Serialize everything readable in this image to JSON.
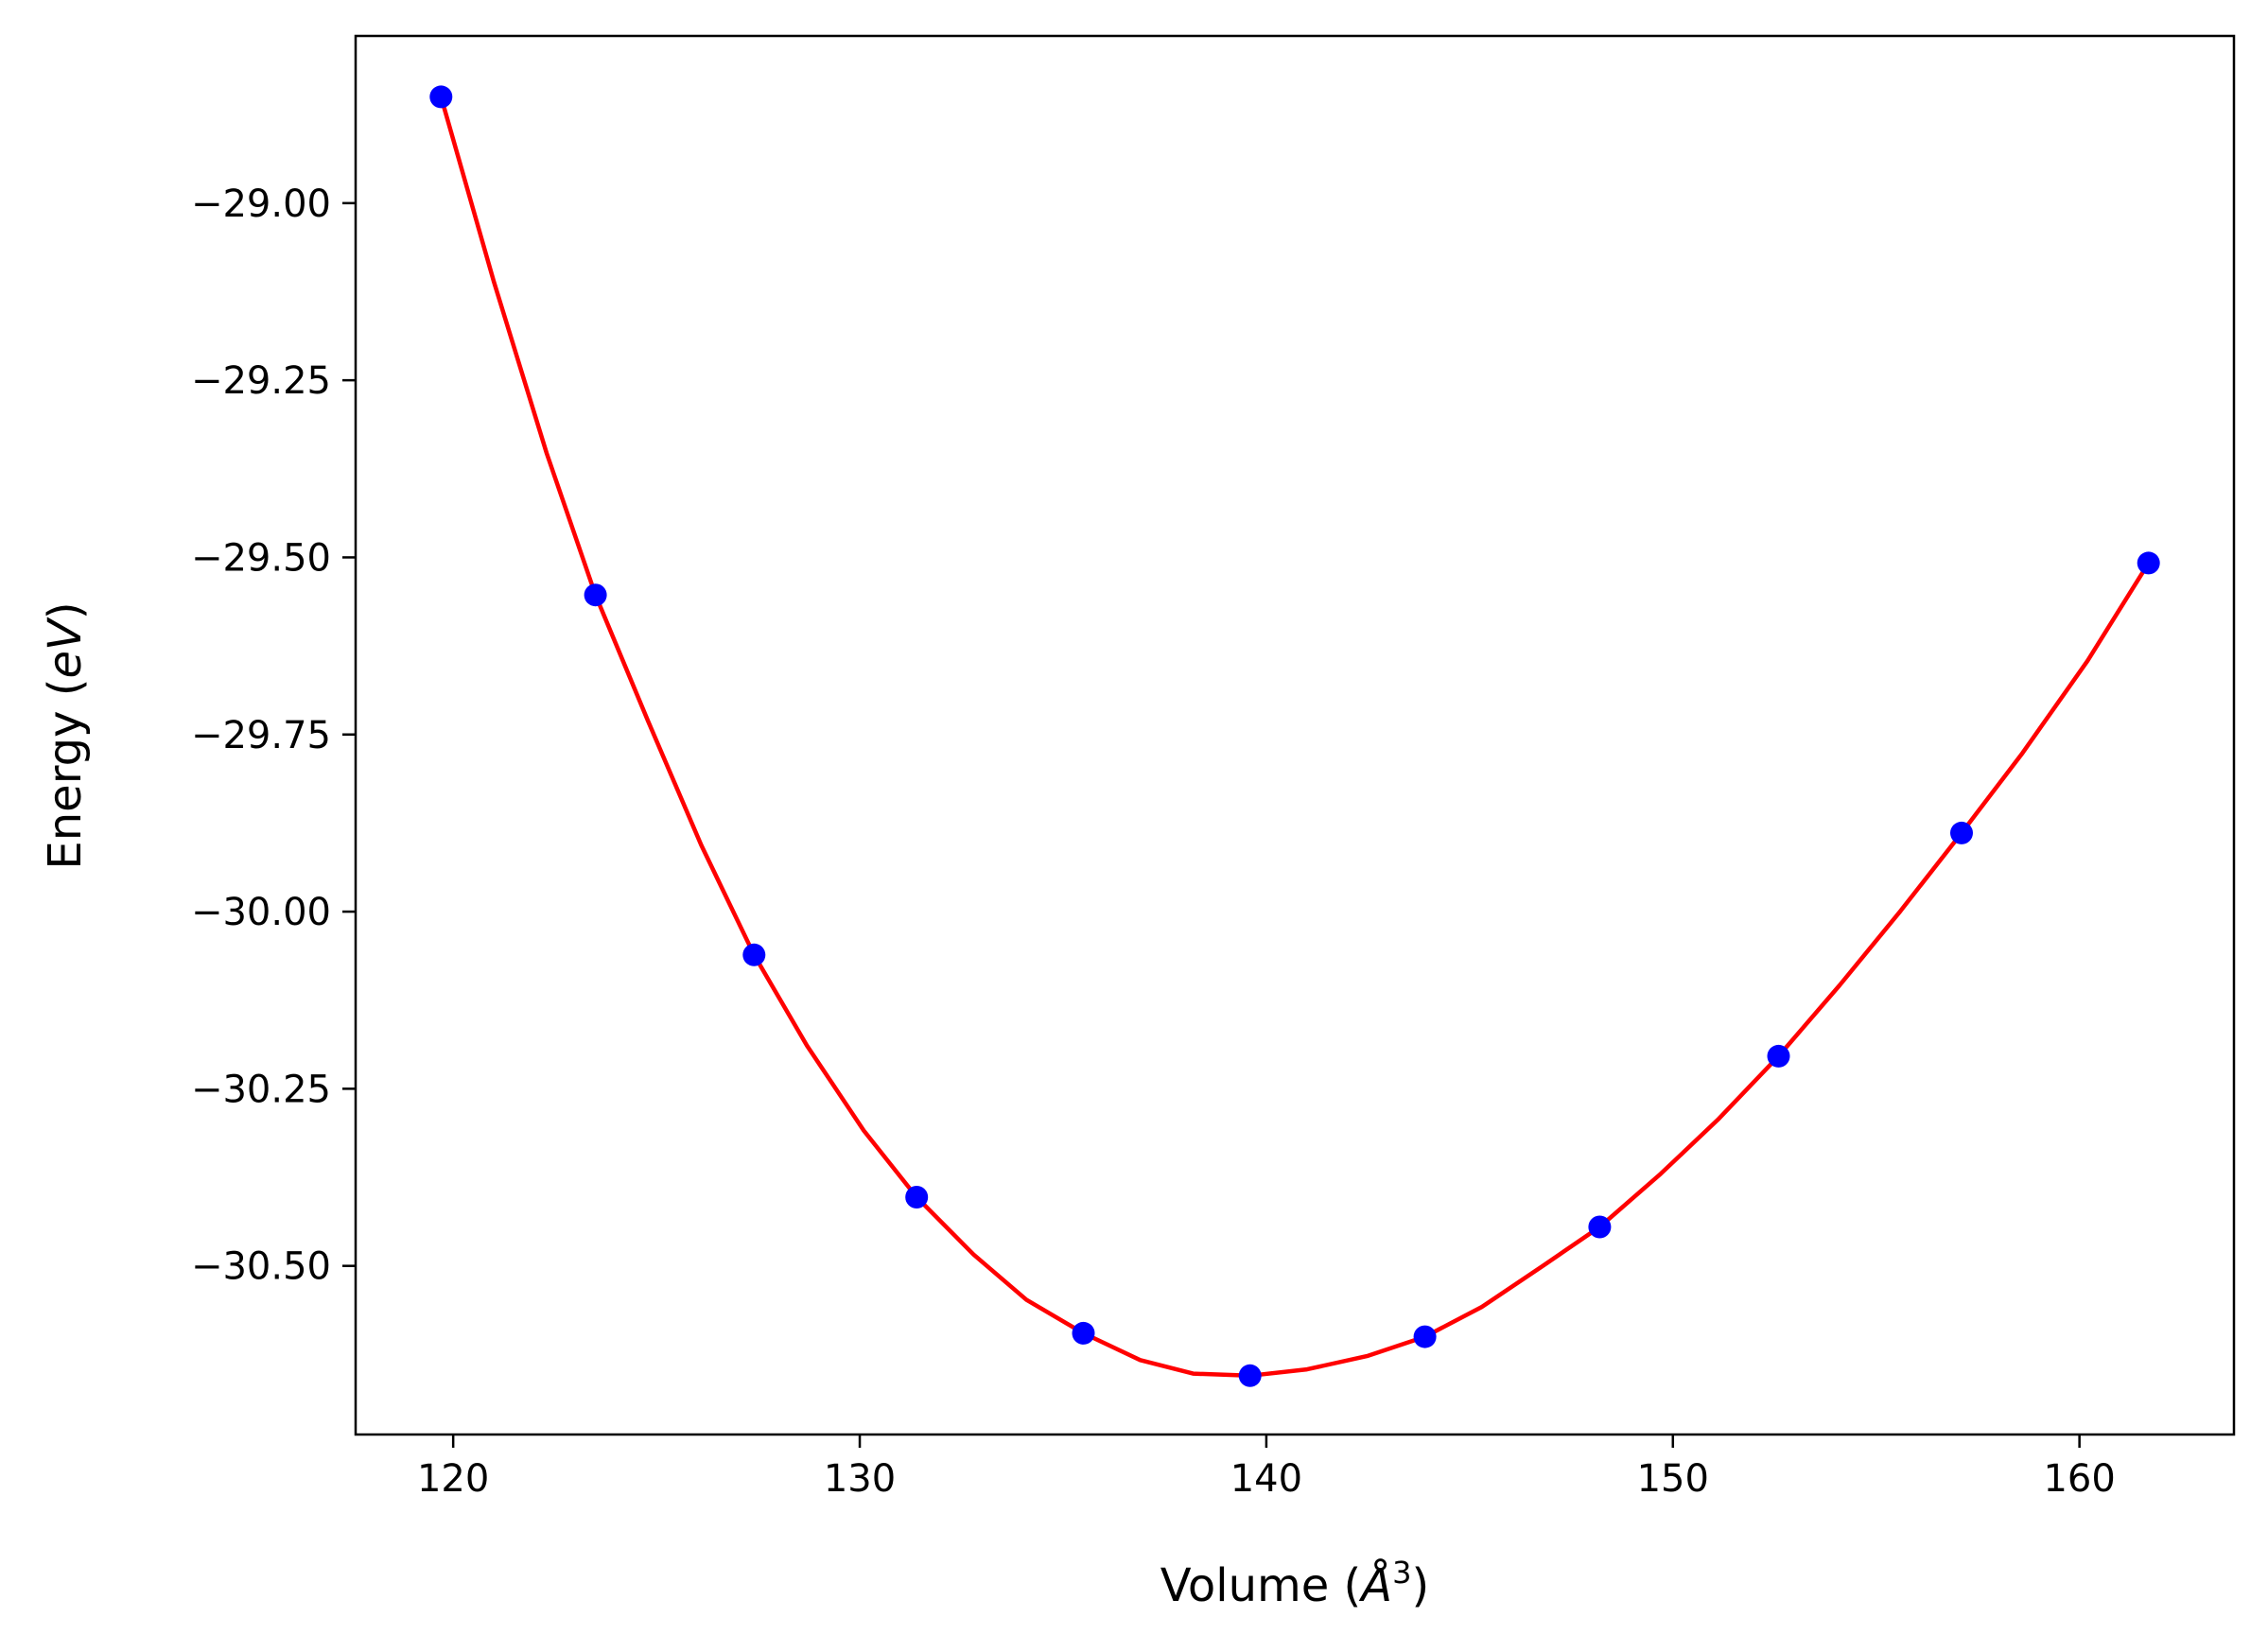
{
  "chart_data": {
    "type": "scatter",
    "xlabel_prefix": "Volume (",
    "xlabel_unit": "Å",
    "xlabel_exp": "3",
    "xlabel_suffix": ")",
    "ylabel_prefix": "Energy (",
    "ylabel_unit": "eV",
    "ylabel_suffix": ")",
    "xlim": [
      117.6,
      163.8
    ],
    "ylim": [
      -30.738,
      -28.764
    ],
    "x_ticks": [
      {
        "value": 120,
        "label": "120"
      },
      {
        "value": 130,
        "label": "130"
      },
      {
        "value": 140,
        "label": "140"
      },
      {
        "value": 150,
        "label": "150"
      },
      {
        "value": 160,
        "label": "160"
      }
    ],
    "y_ticks": [
      {
        "value": -29.0,
        "label": "−29.00"
      },
      {
        "value": -29.25,
        "label": "−29.25"
      },
      {
        "value": -29.5,
        "label": "−29.50"
      },
      {
        "value": -29.75,
        "label": "−29.75"
      },
      {
        "value": -30.0,
        "label": "−30.00"
      },
      {
        "value": -30.25,
        "label": "−30.25"
      },
      {
        "value": -30.5,
        "label": "−30.50"
      }
    ],
    "series": [
      {
        "kind": "points",
        "color": "#0000ff",
        "x": [
          119.7,
          123.5,
          127.4,
          131.4,
          135.5,
          139.6,
          143.9,
          148.2,
          152.6,
          157.1,
          161.7
        ],
        "y": [
          -28.85,
          -29.553,
          -30.061,
          -30.403,
          -30.595,
          -30.655,
          -30.6,
          -30.445,
          -30.204,
          -29.889,
          -29.508
        ]
      },
      {
        "kind": "fit-curve",
        "color": "#ff0000",
        "x": [
          119.7,
          121.0,
          122.3,
          123.5,
          124.8,
          126.1,
          127.4,
          128.7,
          130.1,
          131.4,
          132.8,
          134.1,
          135.5,
          136.9,
          138.2,
          139.6,
          141.0,
          142.5,
          143.9,
          145.3,
          146.8,
          148.2,
          149.7,
          151.1,
          152.6,
          154.1,
          155.6,
          157.1,
          158.6,
          160.2,
          161.7
        ],
        "y": [
          -28.85,
          -29.111,
          -29.353,
          -29.553,
          -29.732,
          -29.906,
          -30.061,
          -30.189,
          -30.309,
          -30.403,
          -30.484,
          -30.548,
          -30.595,
          -30.633,
          -30.652,
          -30.655,
          -30.646,
          -30.627,
          -30.6,
          -30.558,
          -30.5,
          -30.445,
          -30.37,
          -30.294,
          -30.204,
          -30.104,
          -29.999,
          -29.889,
          -29.776,
          -29.646,
          -29.508
        ]
      }
    ]
  }
}
